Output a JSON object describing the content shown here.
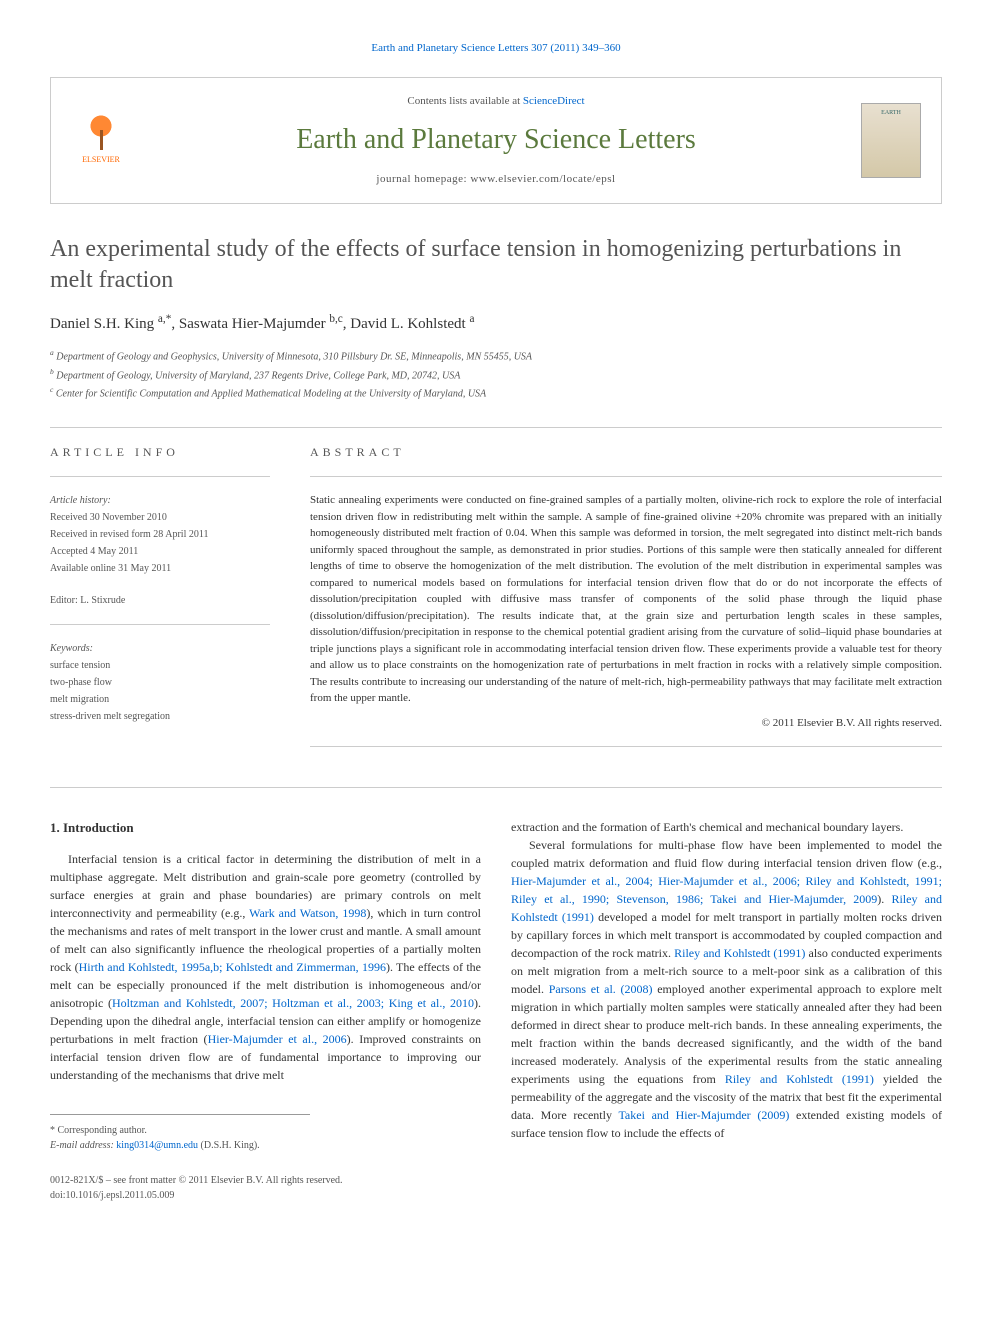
{
  "top_link": {
    "prefix": "Earth and Planetary Science Letters 307 (2011) 349–360"
  },
  "header": {
    "contents_prefix": "Contents lists available at ",
    "contents_link": "ScienceDirect",
    "journal_name": "Earth and Planetary Science Letters",
    "homepage": "journal homepage: www.elsevier.com/locate/epsl",
    "elsevier_label": "ELSEVIER",
    "cover_text": "EARTH"
  },
  "title": "An experimental study of the effects of surface tension in homogenizing perturbations in melt fraction",
  "authors": [
    {
      "name": "Daniel S.H. King",
      "marks": "a,*"
    },
    {
      "name": "Saswata Hier-Majumder",
      "marks": "b,c"
    },
    {
      "name": "David L. Kohlstedt",
      "marks": "a"
    }
  ],
  "affiliations": [
    {
      "mark": "a",
      "text": "Department of Geology and Geophysics, University of Minnesota, 310 Pillsbury Dr. SE, Minneapolis, MN 55455, USA"
    },
    {
      "mark": "b",
      "text": "Department of Geology, University of Maryland, 237 Regents Drive, College Park, MD, 20742, USA"
    },
    {
      "mark": "c",
      "text": "Center for Scientific Computation and Applied Mathematical Modeling at the University of Maryland, USA"
    }
  ],
  "article_info": {
    "heading": "ARTICLE INFO",
    "history_label": "Article history:",
    "history": [
      "Received 30 November 2010",
      "Received in revised form 28 April 2011",
      "Accepted 4 May 2011",
      "Available online 31 May 2011"
    ],
    "editor_label": "Editor: ",
    "editor": "L. Stixrude",
    "keywords_label": "Keywords:",
    "keywords": [
      "surface tension",
      "two-phase flow",
      "melt migration",
      "stress-driven melt segregation"
    ]
  },
  "abstract": {
    "heading": "ABSTRACT",
    "text": "Static annealing experiments were conducted on fine-grained samples of a partially molten, olivine-rich rock to explore the role of interfacial tension driven flow in redistributing melt within the sample. A sample of fine-grained olivine +20% chromite was prepared with an initially homogeneously distributed melt fraction of 0.04. When this sample was deformed in torsion, the melt segregated into distinct melt-rich bands uniformly spaced throughout the sample, as demonstrated in prior studies. Portions of this sample were then statically annealed for different lengths of time to observe the homogenization of the melt distribution. The evolution of the melt distribution in experimental samples was compared to numerical models based on formulations for interfacial tension driven flow that do or do not incorporate the effects of dissolution/precipitation coupled with diffusive mass transfer of components of the solid phase through the liquid phase (dissolution/diffusion/precipitation). The results indicate that, at the grain size and perturbation length scales in these samples, dissolution/diffusion/precipitation in response to the chemical potential gradient arising from the curvature of solid–liquid phase boundaries at triple junctions plays a significant role in accommodating interfacial tension driven flow. These experiments provide a valuable test for theory and allow us to place constraints on the homogenization rate of perturbations in melt fraction in rocks with a relatively simple composition. The results contribute to increasing our understanding of the nature of melt-rich, high-permeability pathways that may facilitate melt extraction from the upper mantle.",
    "copyright": "© 2011 Elsevier B.V. All rights reserved."
  },
  "body": {
    "section_number": "1.",
    "section_title": "Introduction",
    "col1_p1_a": "Interfacial tension is a critical factor in determining the distribution of melt in a multiphase aggregate. Melt distribution and grain-scale pore geometry (controlled by surface energies at grain and phase boundaries) are primary controls on melt interconnectivity and permeability (e.g., ",
    "col1_p1_ref1": "Wark and Watson, 1998",
    "col1_p1_b": "), which in turn control the mechanisms and rates of melt transport in the lower crust and mantle. A small amount of melt can also significantly influence the rheological properties of a partially molten rock (",
    "col1_p1_ref2": "Hirth and Kohlstedt, 1995a,b; Kohlstedt and Zimmerman, 1996",
    "col1_p1_c": "). The effects of the melt can be especially pronounced if the melt distribution is inhomogeneous and/or anisotropic (",
    "col1_p1_ref3": "Holtzman and Kohlstedt, 2007; Holtzman et al., 2003; King et al., 2010",
    "col1_p1_d": "). Depending upon the dihedral angle, interfacial tension can either amplify or homogenize perturbations in melt fraction (",
    "col1_p1_ref4": "Hier-Majumder et al., 2006",
    "col1_p1_e": "). Improved constraints on interfacial tension driven flow are of fundamental importance to improving our understanding of the mechanisms that drive melt",
    "col2_p0": "extraction and the formation of Earth's chemical and mechanical boundary layers.",
    "col2_p1_a": "Several formulations for multi-phase flow have been implemented to model the coupled matrix deformation and fluid flow during interfacial tension driven flow (e.g., ",
    "col2_p1_ref1": "Hier-Majumder et al., 2004; Hier-Majumder et al., 2006; Riley and Kohlstedt, 1991; Riley et al., 1990; Stevenson, 1986; Takei and Hier-Majumder, 2009",
    "col2_p1_b": "). ",
    "col2_p1_ref2": "Riley and Kohlstedt (1991)",
    "col2_p1_c": " developed a model for melt transport in partially molten rocks driven by capillary forces in which melt transport is accommodated by coupled compaction and decompaction of the rock matrix. ",
    "col2_p1_ref3": "Riley and Kohlstedt (1991)",
    "col2_p1_d": " also conducted experiments on melt migration from a melt-rich source to a melt-poor sink as a calibration of this model. ",
    "col2_p1_ref4": "Parsons et al. (2008)",
    "col2_p1_e": " employed another experimental approach to explore melt migration in which partially molten samples were statically annealed after they had been deformed in direct shear to produce melt-rich bands. In these annealing experiments, the melt fraction within the bands decreased significantly, and the width of the band increased moderately. Analysis of the experimental results from the static annealing experiments using the equations from ",
    "col2_p1_ref5": "Riley and Kohlstedt (1991)",
    "col2_p1_f": " yielded the permeability of the aggregate and the viscosity of the matrix that best fit the experimental data. More recently ",
    "col2_p1_ref6": "Takei and Hier-Majumder (2009)",
    "col2_p1_g": " extended existing models of surface tension flow to include the effects of"
  },
  "footnotes": {
    "corresponding": "* Corresponding author.",
    "email_label": "E-mail address: ",
    "email": "king0314@umn.edu",
    "email_suffix": " (D.S.H. King)."
  },
  "footer": {
    "line1": "0012-821X/$ – see front matter © 2011 Elsevier B.V. All rights reserved.",
    "line2": "doi:10.1016/j.epsl.2011.05.009"
  },
  "colors": {
    "link": "#0066cc",
    "journal_green": "#5b7a3d",
    "title_gray": "#555555"
  }
}
